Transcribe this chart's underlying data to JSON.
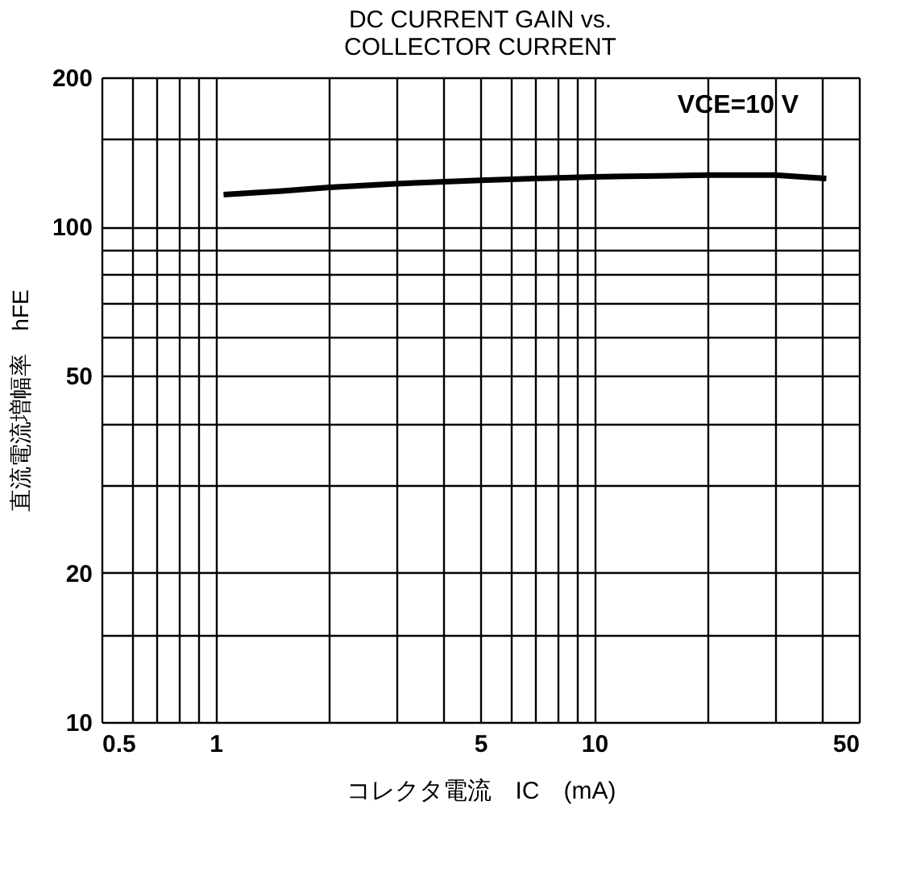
{
  "chart_data": {
    "type": "line",
    "title": [
      "DC CURRENT GAIN vs.",
      "COLLECTOR CURRENT"
    ],
    "xlabel": "コレクタ電流　IC　(mA)",
    "ylabel": "直流電流増幅率　hFE",
    "log": "xy",
    "grid": true,
    "marker": "none",
    "line_style": "solid",
    "xlim": [
      0.5,
      50
    ],
    "ylim": [
      10,
      200
    ],
    "xticks": [
      0.5,
      {
        "value": 0.6,
        "label": null
      },
      {
        "value": 0.7,
        "label": null
      },
      {
        "value": 0.8,
        "label": null
      },
      {
        "value": 0.9,
        "label": null
      },
      1,
      {
        "value": 2,
        "label": null
      },
      {
        "value": 3,
        "label": null
      },
      {
        "value": 4,
        "label": null
      },
      5,
      {
        "value": 6,
        "label": null
      },
      {
        "value": 7,
        "label": null
      },
      {
        "value": 8,
        "label": null
      },
      {
        "value": 9,
        "label": null
      },
      10,
      {
        "value": 20,
        "label": null
      },
      {
        "value": 30,
        "label": null
      },
      {
        "value": 40,
        "label": null
      },
      50
    ],
    "yticks": [
      10,
      {
        "value": 15,
        "label": null
      },
      20,
      {
        "value": 30,
        "label": null
      },
      {
        "value": 40,
        "label": null
      },
      50,
      {
        "value": 60,
        "label": null
      },
      {
        "value": 70,
        "label": null
      },
      {
        "value": 80,
        "label": null
      },
      {
        "value": 90,
        "label": null
      },
      100,
      {
        "value": 150,
        "label": null
      },
      200
    ],
    "annotations": [
      "VCE=10 V"
    ],
    "series": [
      {
        "color": "#000000",
        "x": [
          1.05,
          1.5,
          2,
          3,
          5,
          7,
          10,
          15,
          20,
          30,
          41
        ],
        "values": [
          116,
          118,
          120,
          122,
          124,
          125,
          126,
          126.5,
          127,
          127,
          125
        ]
      }
    ]
  }
}
